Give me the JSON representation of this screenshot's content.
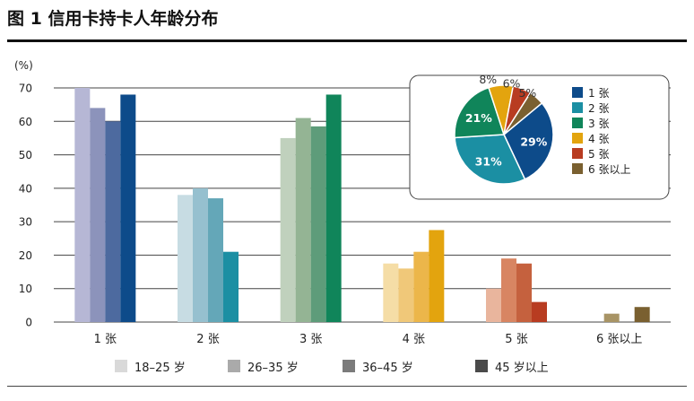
{
  "title": "图 1  信用卡持卡人年龄分布",
  "chart_data": [
    {
      "type": "bar",
      "ylabel": "(%)",
      "ylim": [
        0,
        70
      ],
      "yticks": [
        0,
        10,
        20,
        30,
        40,
        50,
        60,
        70
      ],
      "grid": true,
      "categories": [
        "1 张",
        "2 张",
        "3 张",
        "4 张",
        "5 张",
        "6 张以上"
      ],
      "series": [
        {
          "name": "18–25 岁",
          "values": [
            70,
            38,
            55,
            17.5,
            10,
            0
          ]
        },
        {
          "name": "26–35 岁",
          "values": [
            64,
            40,
            61,
            16,
            19,
            2.5
          ]
        },
        {
          "name": "36–45 岁",
          "values": [
            60,
            37,
            58.5,
            21,
            17.5,
            0
          ]
        },
        {
          "name": "45 岁以上",
          "values": [
            68,
            21,
            68,
            27.5,
            6,
            4.5
          ]
        }
      ],
      "category_colors": [
        [
          "#b6b7d5",
          "#8c93bb",
          "#4d6a9f",
          "#0d4b8a"
        ],
        [
          "#c7dce3",
          "#96c0cf",
          "#64a7b8",
          "#1b8fa3"
        ],
        [
          "#c0d1bd",
          "#94b494",
          "#5e9c7a",
          "#10855a"
        ],
        [
          "#f5dda6",
          "#f0c879",
          "#ecb64a",
          "#e3a40e"
        ],
        [
          "#e9b59d",
          "#d88562",
          "#c5613e",
          "#b83c21"
        ],
        [
          "#c7b485",
          "#a89465",
          "#8e7744",
          "#7a6030"
        ]
      ],
      "legend_colors": [
        "#d9d9d9",
        "#aaaaaa",
        "#7b7b7b",
        "#4a4a4a"
      ],
      "legend": "bottom"
    },
    {
      "type": "pie",
      "labels": [
        "1 张",
        "2 张",
        "3 张",
        "4 张",
        "5 张",
        "6 张以上"
      ],
      "values": [
        29,
        31,
        21,
        8,
        6,
        5
      ],
      "value_labels": [
        "29%",
        "31%",
        "21%",
        "8%",
        "6%",
        "5%"
      ],
      "colors": [
        "#0d4b8a",
        "#1b8fa3",
        "#10855a",
        "#e3a40e",
        "#b83c21",
        "#7a6030"
      ],
      "legend": "right"
    }
  ]
}
